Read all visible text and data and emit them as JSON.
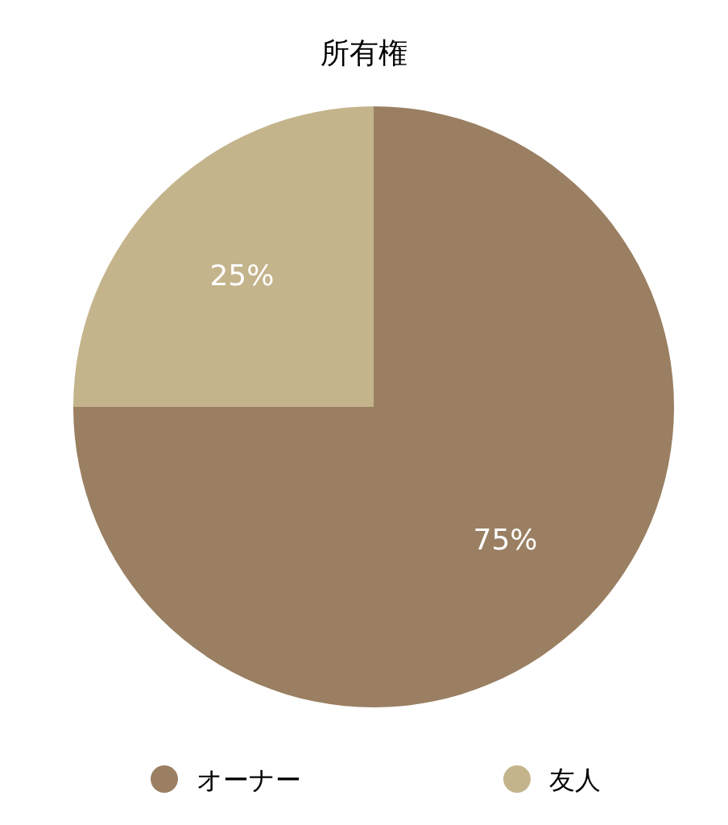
{
  "chart_data": {
    "type": "pie",
    "title": "所有権",
    "categories": [
      "オーナー",
      "友人"
    ],
    "values": [
      75,
      25
    ],
    "colors": [
      "#9a7f62",
      "#c4b48c"
    ],
    "value_labels": [
      "75%",
      "25%"
    ],
    "legend": "bottom"
  }
}
